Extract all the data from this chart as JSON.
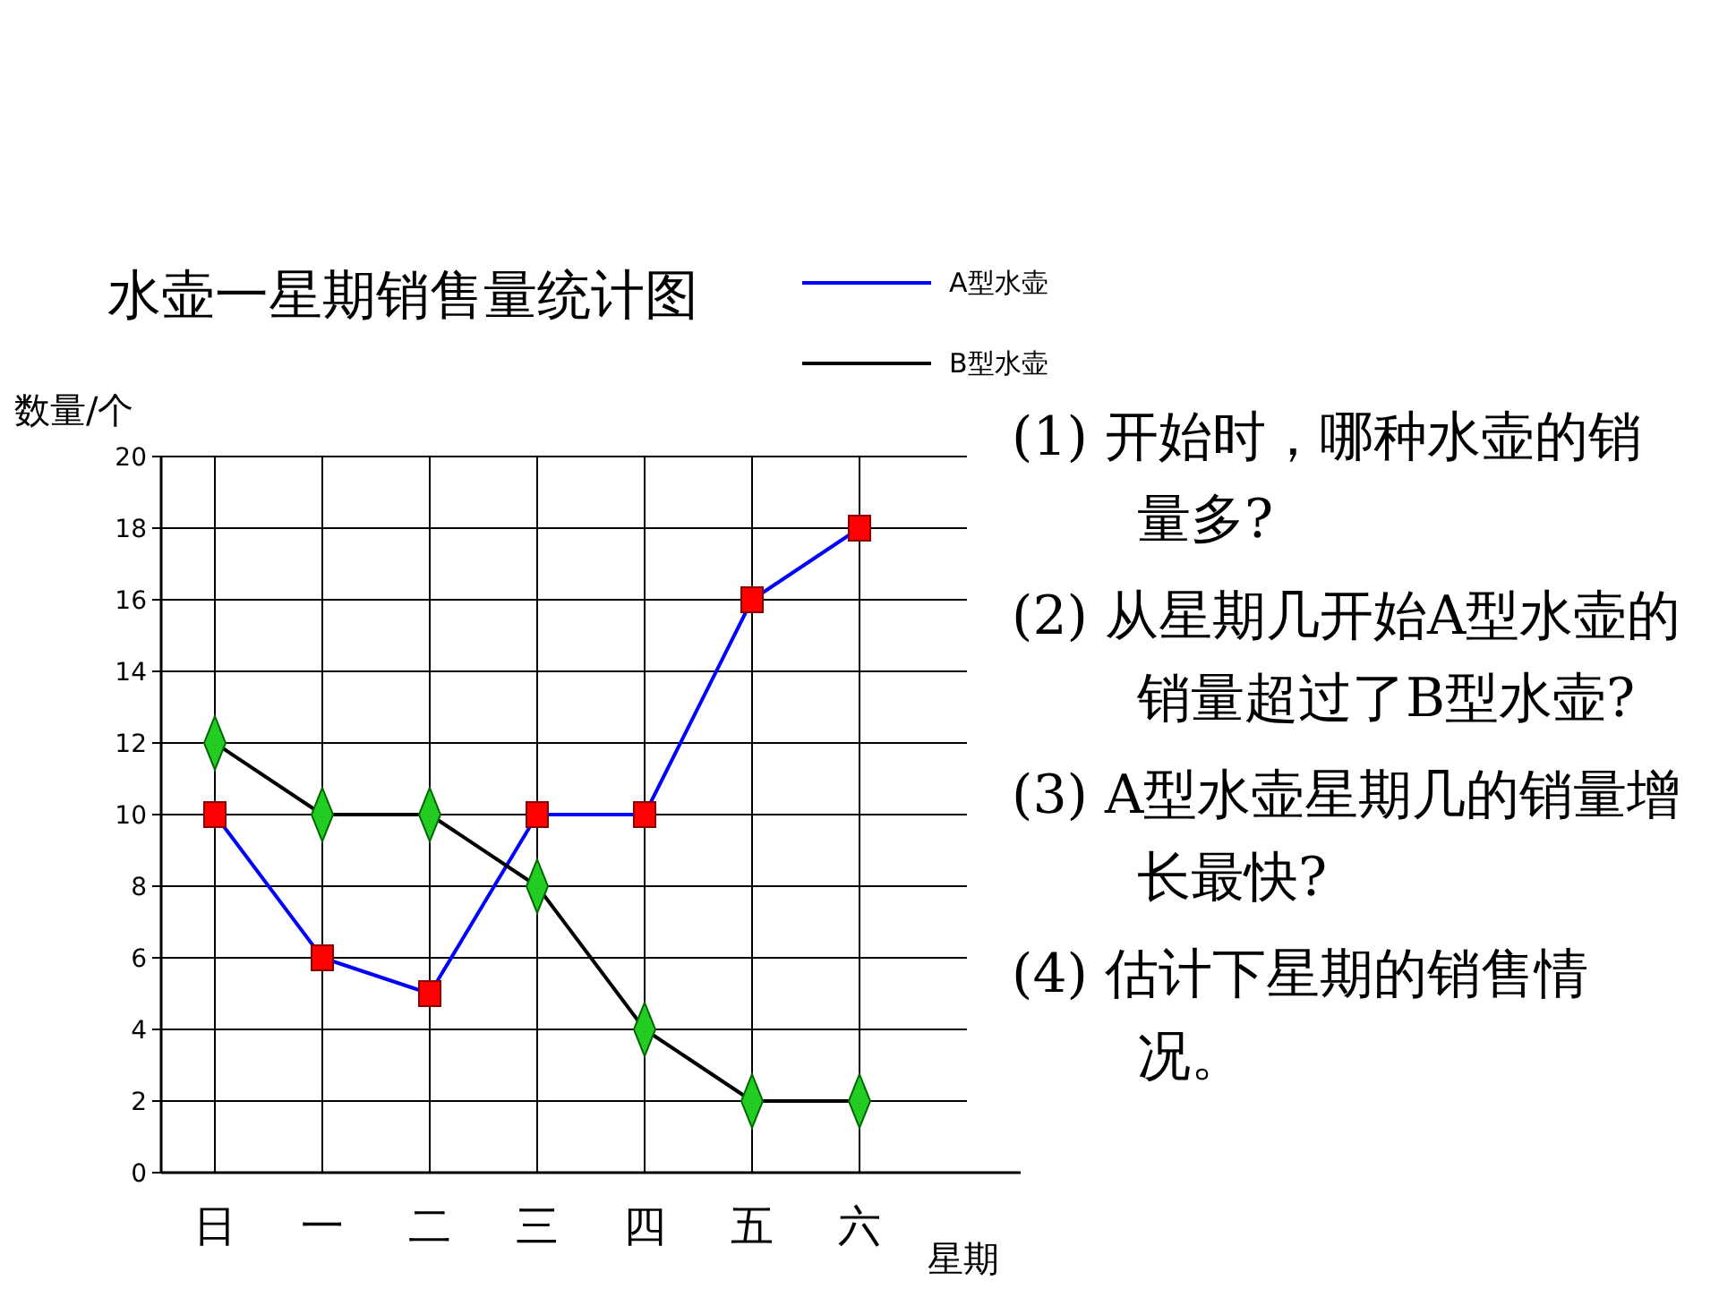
{
  "chart_data": {
    "type": "line",
    "title": "水壶一星期销售量统计图",
    "xlabel": "星期",
    "ylabel": "数量/个",
    "categories": [
      "日",
      "一",
      "二",
      "三",
      "四",
      "五",
      "六"
    ],
    "series": [
      {
        "name": "A型水壶",
        "color": "#0000ff",
        "marker": "square",
        "colors": [
          "#ff0000",
          "#ff0000",
          "#ff0000",
          "#ff0000",
          "#ff0000",
          "#ff0000",
          "#ff0000"
        ],
        "values": [
          10,
          6,
          5,
          10,
          10,
          16,
          18
        ]
      },
      {
        "name": "B型水壶",
        "color": "#000000",
        "marker": "diamond",
        "colors": [
          "#22cc22",
          "#22cc22",
          "#22cc22",
          "#22cc22",
          "#22cc22",
          "#22cc22",
          "#22cc22"
        ],
        "values": [
          12,
          10,
          10,
          8,
          4,
          2,
          2
        ]
      }
    ],
    "ylim": [
      0,
      20
    ],
    "yticks": [
      0,
      2,
      4,
      6,
      8,
      10,
      12,
      14,
      16,
      18,
      20
    ],
    "grid": true,
    "legend": "top right",
    "annotations": [
      "(1) 开始时，哪种水壶的销量多?",
      "(2) 从星期几开始A型水壶的销量超过了B型水壶?",
      "(3) A型水壶星期几的销量增长最快?",
      "(4) 估计下星期的销售情况。"
    ]
  }
}
